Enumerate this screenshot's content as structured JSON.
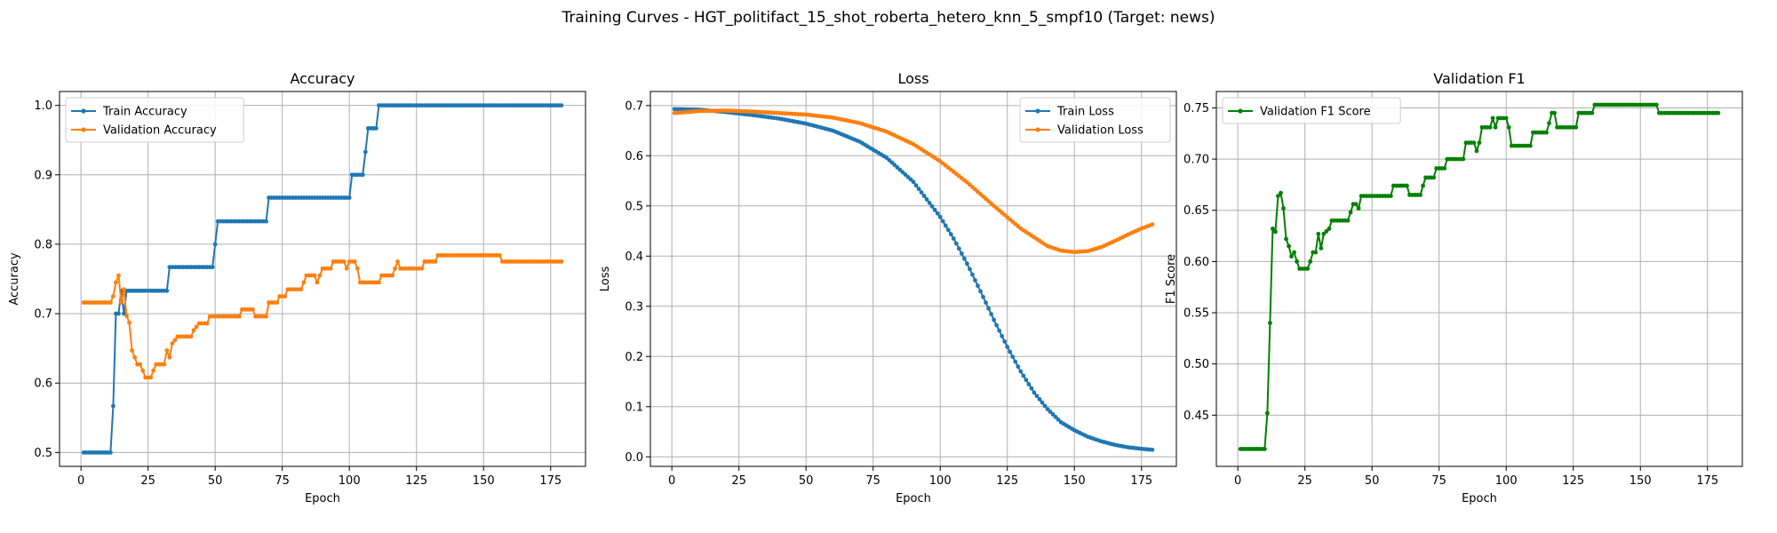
{
  "suptitle": "Training Curves - HGT_politifact_15_shot_roberta_hetero_knn_5_smpf10 (Target: news)",
  "colors": {
    "blue": "#1f77b4",
    "orange": "#ff7f0e",
    "green": "#008000",
    "grid": "#b0b0b0"
  },
  "chart_data": [
    {
      "type": "line",
      "title": "Accuracy",
      "xlabel": "Epoch",
      "ylabel": "Accuracy",
      "xlim": [
        -8,
        188
      ],
      "ylim": [
        0.48,
        1.02
      ],
      "xticks": [
        0,
        25,
        50,
        75,
        100,
        125,
        150,
        175
      ],
      "yticks": [
        0.5,
        0.6,
        0.7,
        0.8,
        0.9,
        1.0
      ],
      "ytick_labels": [
        "0.5",
        "0.6",
        "0.7",
        "0.8",
        "0.9",
        "1.0"
      ],
      "legend": "upper-left",
      "grid": true,
      "series": [
        {
          "name": "Train Accuracy",
          "color": "blue",
          "points": [
            [
              1,
              0.5
            ],
            [
              11,
              0.5
            ],
            [
              12,
              0.567
            ],
            [
              13,
              0.7
            ],
            [
              14,
              0.7
            ],
            [
              15,
              0.733
            ],
            [
              16,
              0.7
            ],
            [
              17,
              0.733
            ],
            [
              32,
              0.733
            ],
            [
              33,
              0.767
            ],
            [
              49,
              0.767
            ],
            [
              50,
              0.8
            ],
            [
              51,
              0.833
            ],
            [
              69,
              0.833
            ],
            [
              70,
              0.867
            ],
            [
              100,
              0.867
            ],
            [
              101,
              0.9
            ],
            [
              105,
              0.9
            ],
            [
              106,
              0.933
            ],
            [
              107,
              0.967
            ],
            [
              110,
              0.967
            ],
            [
              111,
              1.0
            ],
            [
              179,
              1.0
            ]
          ]
        },
        {
          "name": "Validation Accuracy",
          "color": "orange",
          "points": [
            [
              1,
              0.716
            ],
            [
              11,
              0.716
            ],
            [
              12,
              0.725
            ],
            [
              13,
              0.745
            ],
            [
              14,
              0.755
            ],
            [
              15,
              0.716
            ],
            [
              16,
              0.735
            ],
            [
              17,
              0.697
            ],
            [
              18,
              0.687
            ],
            [
              19,
              0.647
            ],
            [
              20,
              0.637
            ],
            [
              21,
              0.627
            ],
            [
              22,
              0.627
            ],
            [
              23,
              0.618
            ],
            [
              24,
              0.608
            ],
            [
              26,
              0.608
            ],
            [
              27,
              0.618
            ],
            [
              28,
              0.627
            ],
            [
              31,
              0.627
            ],
            [
              32,
              0.647
            ],
            [
              33,
              0.637
            ],
            [
              34,
              0.657
            ],
            [
              36,
              0.667
            ],
            [
              41,
              0.667
            ],
            [
              42,
              0.676
            ],
            [
              44,
              0.686
            ],
            [
              47,
              0.686
            ],
            [
              48,
              0.696
            ],
            [
              59,
              0.696
            ],
            [
              60,
              0.706
            ],
            [
              64,
              0.706
            ],
            [
              65,
              0.696
            ],
            [
              69,
              0.696
            ],
            [
              70,
              0.716
            ],
            [
              73,
              0.716
            ],
            [
              74,
              0.725
            ],
            [
              76,
              0.725
            ],
            [
              77,
              0.735
            ],
            [
              82,
              0.735
            ],
            [
              83,
              0.745
            ],
            [
              84,
              0.755
            ],
            [
              87,
              0.755
            ],
            [
              88,
              0.745
            ],
            [
              89,
              0.755
            ],
            [
              90,
              0.765
            ],
            [
              93,
              0.765
            ],
            [
              94,
              0.775
            ],
            [
              98,
              0.775
            ],
            [
              99,
              0.765
            ],
            [
              100,
              0.775
            ],
            [
              102,
              0.775
            ],
            [
              103,
              0.765
            ],
            [
              104,
              0.745
            ],
            [
              111,
              0.745
            ],
            [
              112,
              0.755
            ],
            [
              116,
              0.755
            ],
            [
              117,
              0.765
            ],
            [
              118,
              0.775
            ],
            [
              119,
              0.765
            ],
            [
              127,
              0.765
            ],
            [
              128,
              0.775
            ],
            [
              132,
              0.775
            ],
            [
              133,
              0.784
            ],
            [
              156,
              0.784
            ],
            [
              157,
              0.775
            ],
            [
              179,
              0.775
            ]
          ]
        }
      ]
    },
    {
      "type": "line",
      "title": "Loss",
      "xlabel": "Epoch",
      "ylabel": "Loss",
      "xlim": [
        -8,
        188
      ],
      "ylim": [
        -0.019,
        0.728
      ],
      "xticks": [
        0,
        25,
        50,
        75,
        100,
        125,
        150,
        175
      ],
      "yticks": [
        0.0,
        0.1,
        0.2,
        0.3,
        0.4,
        0.5,
        0.6,
        0.7
      ],
      "ytick_labels": [
        "0.0",
        "0.1",
        "0.2",
        "0.3",
        "0.4",
        "0.5",
        "0.6",
        "0.7"
      ],
      "legend": "upper-right",
      "grid": true,
      "series": [
        {
          "name": "Train Loss",
          "color": "blue",
          "points": [
            [
              1,
              0.693
            ],
            [
              10,
              0.692
            ],
            [
              20,
              0.687
            ],
            [
              30,
              0.681
            ],
            [
              40,
              0.674
            ],
            [
              50,
              0.664
            ],
            [
              60,
              0.65
            ],
            [
              70,
              0.628
            ],
            [
              80,
              0.596
            ],
            [
              90,
              0.548
            ],
            [
              100,
              0.478
            ],
            [
              105,
              0.435
            ],
            [
              110,
              0.385
            ],
            [
              115,
              0.33
            ],
            [
              120,
              0.273
            ],
            [
              125,
              0.219
            ],
            [
              130,
              0.17
            ],
            [
              135,
              0.128
            ],
            [
              140,
              0.095
            ],
            [
              145,
              0.069
            ],
            [
              150,
              0.053
            ],
            [
              155,
              0.04
            ],
            [
              160,
              0.031
            ],
            [
              165,
              0.024
            ],
            [
              170,
              0.019
            ],
            [
              175,
              0.016
            ],
            [
              179,
              0.014
            ]
          ]
        },
        {
          "name": "Validation Loss",
          "color": "orange",
          "points": [
            [
              1,
              0.685
            ],
            [
              10,
              0.689
            ],
            [
              20,
              0.69
            ],
            [
              30,
              0.688
            ],
            [
              40,
              0.685
            ],
            [
              50,
              0.682
            ],
            [
              60,
              0.676
            ],
            [
              70,
              0.665
            ],
            [
              80,
              0.648
            ],
            [
              90,
              0.623
            ],
            [
              100,
              0.589
            ],
            [
              110,
              0.547
            ],
            [
              120,
              0.5
            ],
            [
              130,
              0.455
            ],
            [
              140,
              0.42
            ],
            [
              145,
              0.411
            ],
            [
              150,
              0.408
            ],
            [
              155,
              0.41
            ],
            [
              160,
              0.418
            ],
            [
              165,
              0.43
            ],
            [
              170,
              0.443
            ],
            [
              175,
              0.455
            ],
            [
              179,
              0.463
            ]
          ]
        }
      ]
    },
    {
      "type": "line",
      "title": "Validation F1",
      "xlabel": "Epoch",
      "ylabel": "F1 Score",
      "xlim": [
        -8,
        188
      ],
      "ylim": [
        0.4,
        0.766
      ],
      "xticks": [
        0,
        25,
        50,
        75,
        100,
        125,
        150,
        175
      ],
      "yticks": [
        0.45,
        0.5,
        0.55,
        0.6,
        0.65,
        0.7,
        0.75
      ],
      "ytick_labels": [
        "0.45",
        "0.50",
        "0.55",
        "0.60",
        "0.65",
        "0.70",
        "0.75"
      ],
      "legend": "upper-left",
      "grid": true,
      "series": [
        {
          "name": "Validation F1 Score",
          "color": "green",
          "points": [
            [
              1,
              0.417
            ],
            [
              10,
              0.417
            ],
            [
              11,
              0.452
            ],
            [
              12,
              0.54
            ],
            [
              13,
              0.632
            ],
            [
              14,
              0.629
            ],
            [
              15,
              0.664
            ],
            [
              16,
              0.667
            ],
            [
              17,
              0.652
            ],
            [
              18,
              0.622
            ],
            [
              19,
              0.615
            ],
            [
              20,
              0.605
            ],
            [
              21,
              0.609
            ],
            [
              22,
              0.6
            ],
            [
              23,
              0.593
            ],
            [
              26,
              0.593
            ],
            [
              27,
              0.6
            ],
            [
              28,
              0.609
            ],
            [
              29,
              0.609
            ],
            [
              30,
              0.627
            ],
            [
              31,
              0.613
            ],
            [
              32,
              0.627
            ],
            [
              34,
              0.632
            ],
            [
              35,
              0.64
            ],
            [
              41,
              0.64
            ],
            [
              42,
              0.648
            ],
            [
              43,
              0.656
            ],
            [
              44,
              0.656
            ],
            [
              45,
              0.652
            ],
            [
              46,
              0.664
            ],
            [
              57,
              0.664
            ],
            [
              58,
              0.674
            ],
            [
              63,
              0.674
            ],
            [
              64,
              0.665
            ],
            [
              68,
              0.665
            ],
            [
              69,
              0.674
            ],
            [
              70,
              0.682
            ],
            [
              73,
              0.682
            ],
            [
              74,
              0.691
            ],
            [
              77,
              0.691
            ],
            [
              78,
              0.7
            ],
            [
              84,
              0.7
            ],
            [
              85,
              0.716
            ],
            [
              88,
              0.716
            ],
            [
              89,
              0.708
            ],
            [
              90,
              0.716
            ],
            [
              91,
              0.731
            ],
            [
              94,
              0.731
            ],
            [
              95,
              0.74
            ],
            [
              96,
              0.731
            ],
            [
              97,
              0.74
            ],
            [
              100,
              0.74
            ],
            [
              101,
              0.731
            ],
            [
              102,
              0.713
            ],
            [
              109,
              0.713
            ],
            [
              110,
              0.726
            ],
            [
              115,
              0.726
            ],
            [
              116,
              0.735
            ],
            [
              117,
              0.745
            ],
            [
              118,
              0.745
            ],
            [
              119,
              0.731
            ],
            [
              126,
              0.731
            ],
            [
              127,
              0.745
            ],
            [
              132,
              0.745
            ],
            [
              133,
              0.753
            ],
            [
              156,
              0.753
            ],
            [
              157,
              0.745
            ],
            [
              179,
              0.745
            ]
          ]
        }
      ]
    }
  ]
}
